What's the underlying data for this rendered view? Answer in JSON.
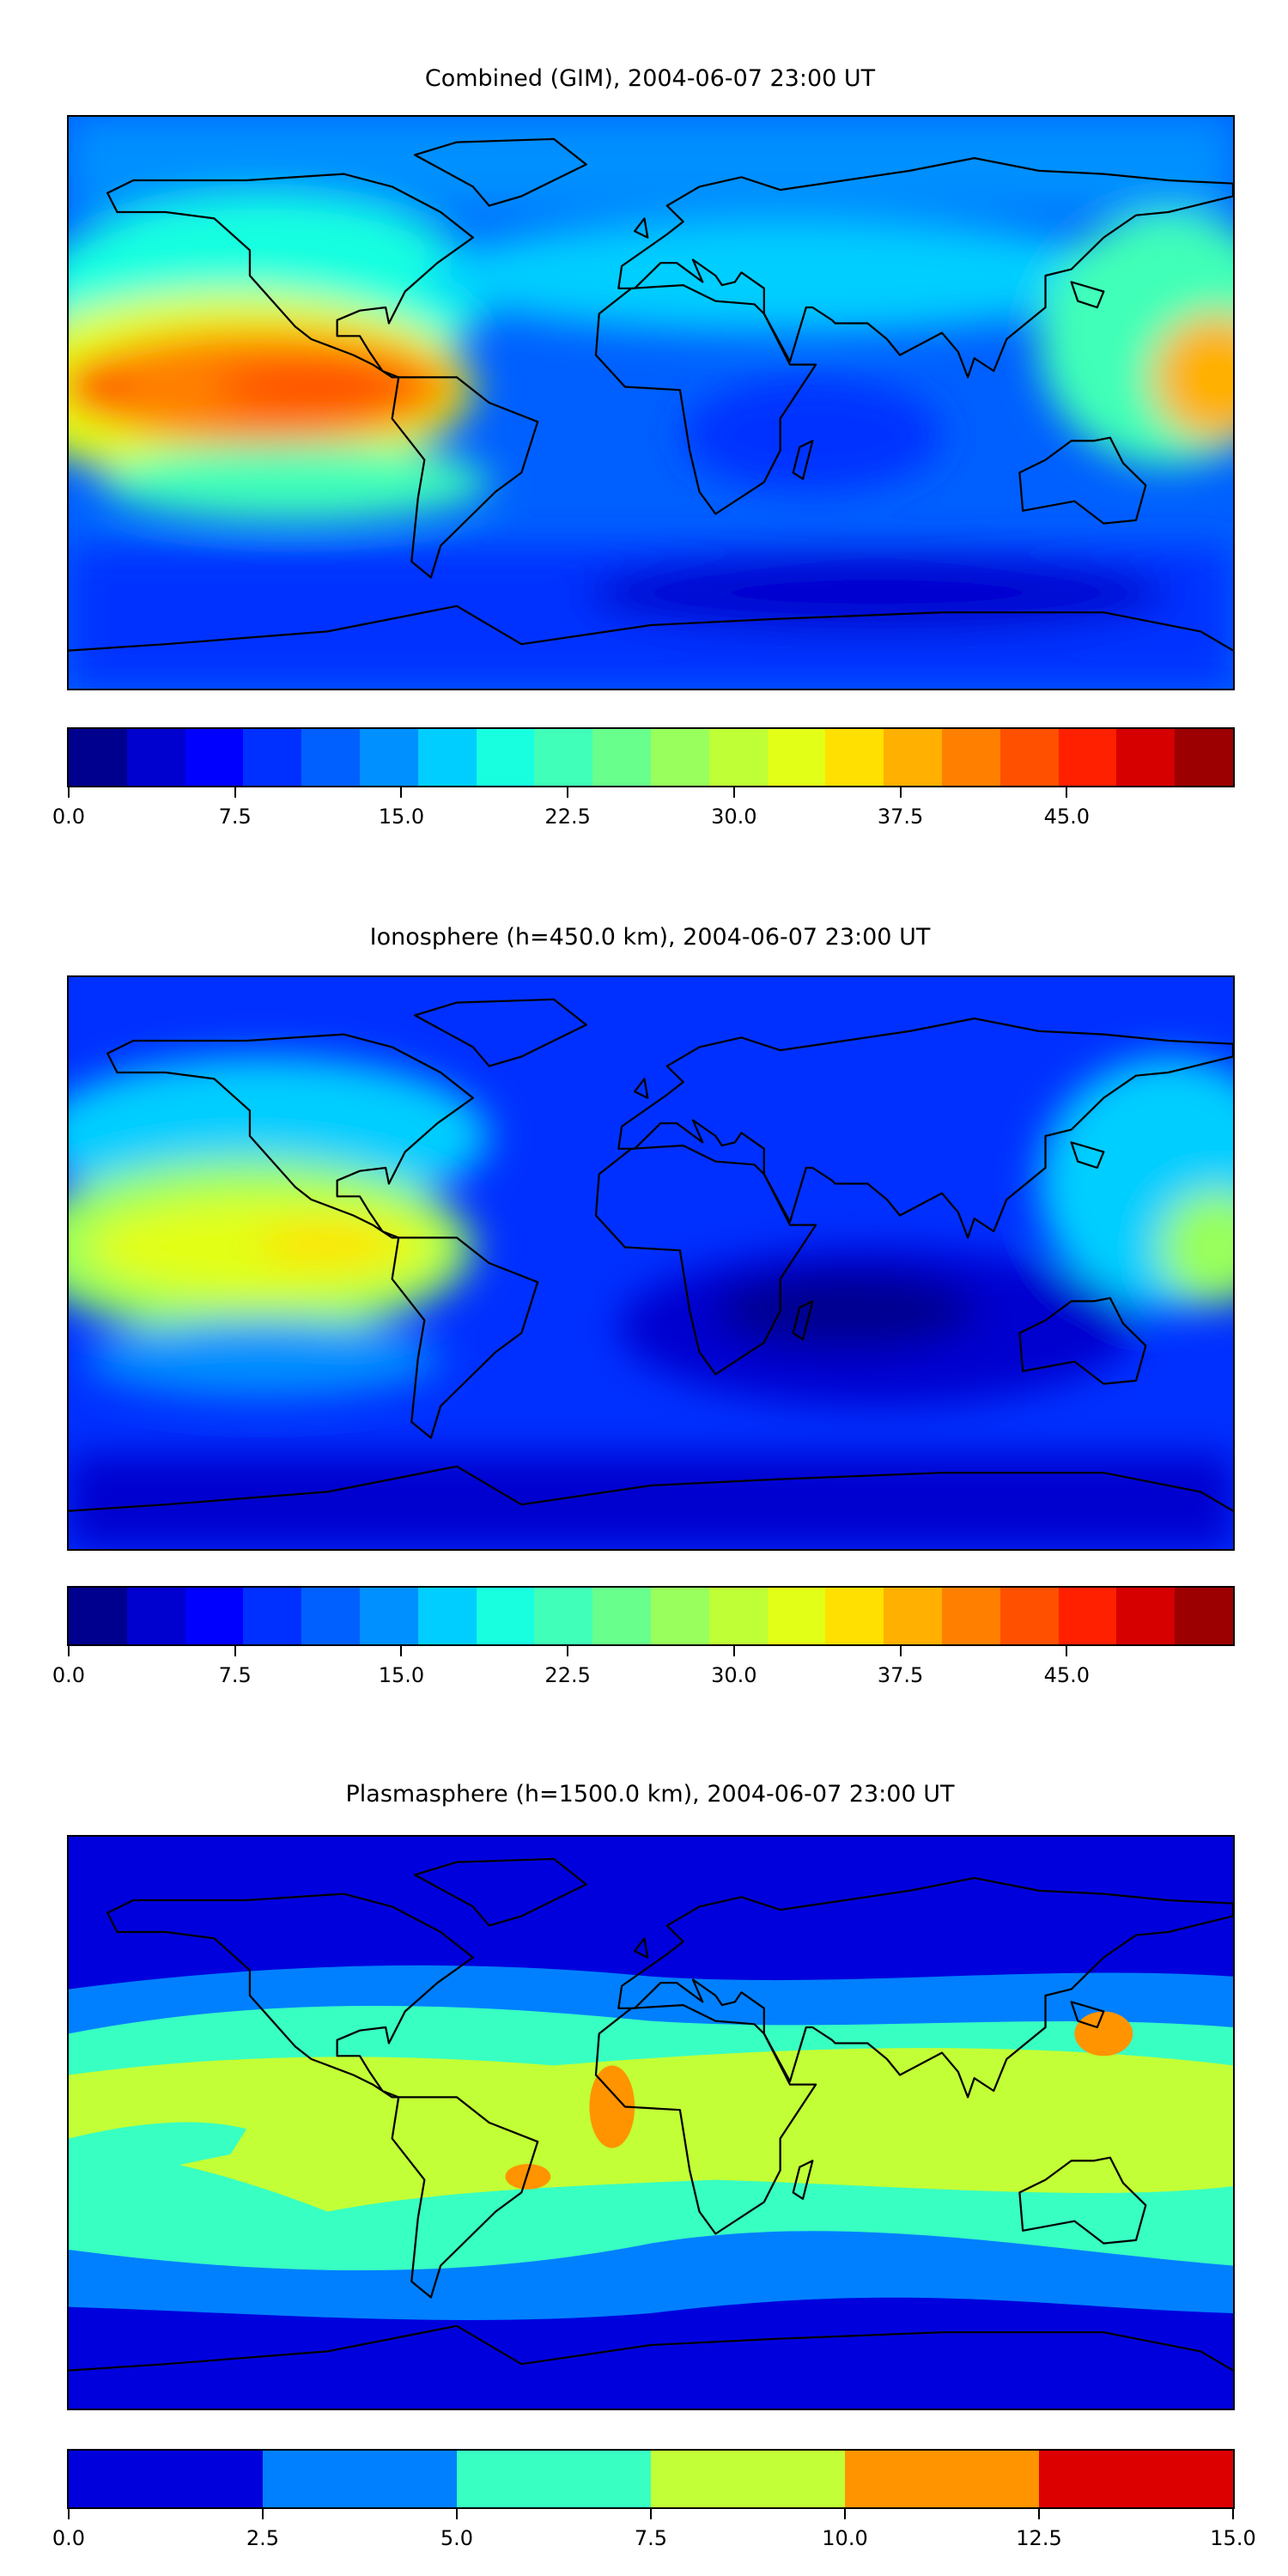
{
  "chart_data": [
    {
      "type": "heatmap",
      "title": "Combined (GIM), 2004-06-07 23:00 UT",
      "projection": "plate carree, global",
      "colorbar": {
        "levels_min": 0.0,
        "levels_max": 52.5,
        "step": 2.5,
        "tick_labels": [
          "0.0",
          "7.5",
          "15.0",
          "22.5",
          "30.0",
          "37.5",
          "45.0"
        ],
        "tick_values": [
          0,
          7.5,
          15,
          22.5,
          30,
          37.5,
          45
        ]
      },
      "features": "maximum ~40-45 over eastern Pacific near equator (lon -170 to -80), ~30-35 over western Pacific/SE Asia, minima 5-10 over southern oceans and Antarctica"
    },
    {
      "type": "heatmap",
      "title": "Ionosphere  (h=450.0 km), 2004-06-07 23:00 UT",
      "projection": "plate carree, global",
      "colorbar": {
        "levels_min": 0.0,
        "levels_max": 52.5,
        "step": 2.5,
        "tick_labels": [
          "0.0",
          "7.5",
          "15.0",
          "22.5",
          "30.0",
          "37.5",
          "45.0"
        ],
        "tick_values": [
          0,
          7.5,
          15,
          22.5,
          30,
          37.5,
          45
        ]
      },
      "features": "maximum ~32-37 over eastern Pacific near equator, ~25-30 over western Pacific, minima 0-5 over Indian Ocean and southern oceans"
    },
    {
      "type": "heatmap",
      "title": "Plasmasphere (h=1500.0 km), 2004-06-07 23:00 UT",
      "projection": "plate carree, global",
      "colorbar": {
        "levels_min": 0.0,
        "levels_max": 15.0,
        "step": 2.5,
        "tick_labels": [
          "0.0",
          "2.5",
          "5.0",
          "7.5",
          "10.0",
          "12.5",
          "15.0"
        ],
        "tick_values": [
          0,
          2.5,
          5,
          7.5,
          10,
          12.5,
          15
        ]
      },
      "features": "band of 7.5-10 at low latitudes, 10-12.5 patches over central Africa, south Brazil and western Pacific; 0-2.5 at high latitudes"
    }
  ],
  "colors": {
    "jet21": [
      "#00008f",
      "#0000cf",
      "#0000ff",
      "#0030ff",
      "#0060ff",
      "#0090ff",
      "#00ceff",
      "#18ffe0",
      "#40ffb8",
      "#68ff8c",
      "#98ff5c",
      "#bfff36",
      "#e2ff18",
      "#ffe000",
      "#ffb000",
      "#ff8000",
      "#ff5000",
      "#ff2000",
      "#d60000",
      "#9c0000"
    ],
    "jet6": [
      "#0000dd",
      "#0080ff",
      "#38ffc2",
      "#c2ff36",
      "#ff9400",
      "#dd0000"
    ]
  }
}
